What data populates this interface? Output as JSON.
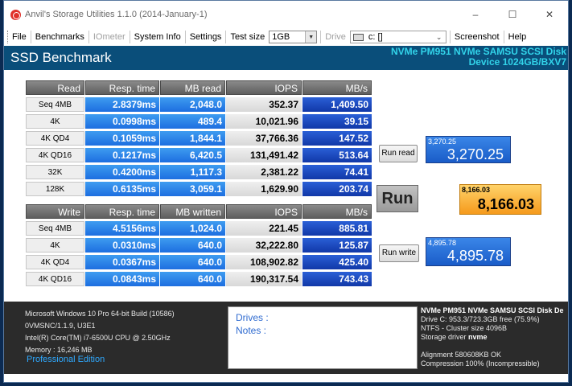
{
  "window": {
    "title": "Anvil's Storage Utilities 1.1.0 (2014-January-1)",
    "minimize": "–",
    "maximize": "☐",
    "close": "✕"
  },
  "menu": {
    "file": "File",
    "benchmarks": "Benchmarks",
    "iometer": "IOmeter",
    "sysinfo": "System Info",
    "settings": "Settings",
    "test_size_label": "Test size",
    "test_size_value": "1GB",
    "drive_label": "Drive",
    "drive_value": "c: []",
    "screenshot": "Screenshot",
    "help": "Help"
  },
  "header": {
    "title": "SSD Benchmark",
    "device_line1": "NVMe PM951 NVMe SAMSU SCSI Disk",
    "device_line2": "Device 1024GB/BXV7"
  },
  "read": {
    "headers": [
      "Read",
      "Resp. time",
      "MB read",
      "IOPS",
      "MB/s"
    ],
    "rows": [
      {
        "label": "Seq 4MB",
        "resp": "2.8379ms",
        "mb": "2,048.0",
        "iops": "352.37",
        "mbs": "1,409.50"
      },
      {
        "label": "4K",
        "resp": "0.0998ms",
        "mb": "489.4",
        "iops": "10,021.96",
        "mbs": "39.15"
      },
      {
        "label": "4K QD4",
        "resp": "0.1059ms",
        "mb": "1,844.1",
        "iops": "37,766.36",
        "mbs": "147.52"
      },
      {
        "label": "4K QD16",
        "resp": "0.1217ms",
        "mb": "6,420.5",
        "iops": "131,491.42",
        "mbs": "513.64"
      },
      {
        "label": "32K",
        "resp": "0.4200ms",
        "mb": "1,117.3",
        "iops": "2,381.22",
        "mbs": "74.41"
      },
      {
        "label": "128K",
        "resp": "0.6135ms",
        "mb": "3,059.1",
        "iops": "1,629.90",
        "mbs": "203.74"
      }
    ]
  },
  "write": {
    "headers": [
      "Write",
      "Resp. time",
      "MB written",
      "IOPS",
      "MB/s"
    ],
    "rows": [
      {
        "label": "Seq 4MB",
        "resp": "4.5156ms",
        "mb": "1,024.0",
        "iops": "221.45",
        "mbs": "885.81"
      },
      {
        "label": "4K",
        "resp": "0.0310ms",
        "mb": "640.0",
        "iops": "32,222.80",
        "mbs": "125.87"
      },
      {
        "label": "4K QD4",
        "resp": "0.0367ms",
        "mb": "640.0",
        "iops": "108,902.82",
        "mbs": "425.40"
      },
      {
        "label": "4K QD16",
        "resp": "0.0843ms",
        "mb": "640.0",
        "iops": "190,317.54",
        "mbs": "743.43"
      }
    ]
  },
  "buttons": {
    "run_read": "Run read",
    "run": "Run",
    "run_write": "Run write"
  },
  "scores": {
    "read_small": "3,270.25",
    "read_big": "3,270.25",
    "total_small": "8,166.03",
    "total_big": "8,166.03",
    "write_small": "4,895.78",
    "write_big": "4,895.78"
  },
  "footer": {
    "sys_lines": [
      "Microsoft Windows 10 Pro 64-bit Build (10586)",
      "0VMSNC/1.1.9, U3E1",
      "Intel(R) Core(TM) i7-6500U CPU @ 2.50GHz",
      "Memory : 16,246 MB"
    ],
    "edition": "Professional Edition",
    "drives_label": "Drives :",
    "notes_label": "Notes :",
    "drive_info_title": "NVMe PM951 NVMe SAMSU SCSI Disk De",
    "drive_info_lines": [
      "Drive C: 953.3/723.3GB free (75.9%)",
      "NTFS - Cluster size 4096B"
    ],
    "storage_driver_label": "Storage driver",
    "storage_driver_value": "nvme",
    "alignment": "Alignment 580608KB OK",
    "compression": "Compression 100% (Incompressible)"
  },
  "colors": {
    "header_bg": "#0a4e7a",
    "device_text": "#32d4ea",
    "result_blue": "#1d6ee0",
    "total_orange": "#f59a1c",
    "footer_bg": "#2b2b2b"
  }
}
